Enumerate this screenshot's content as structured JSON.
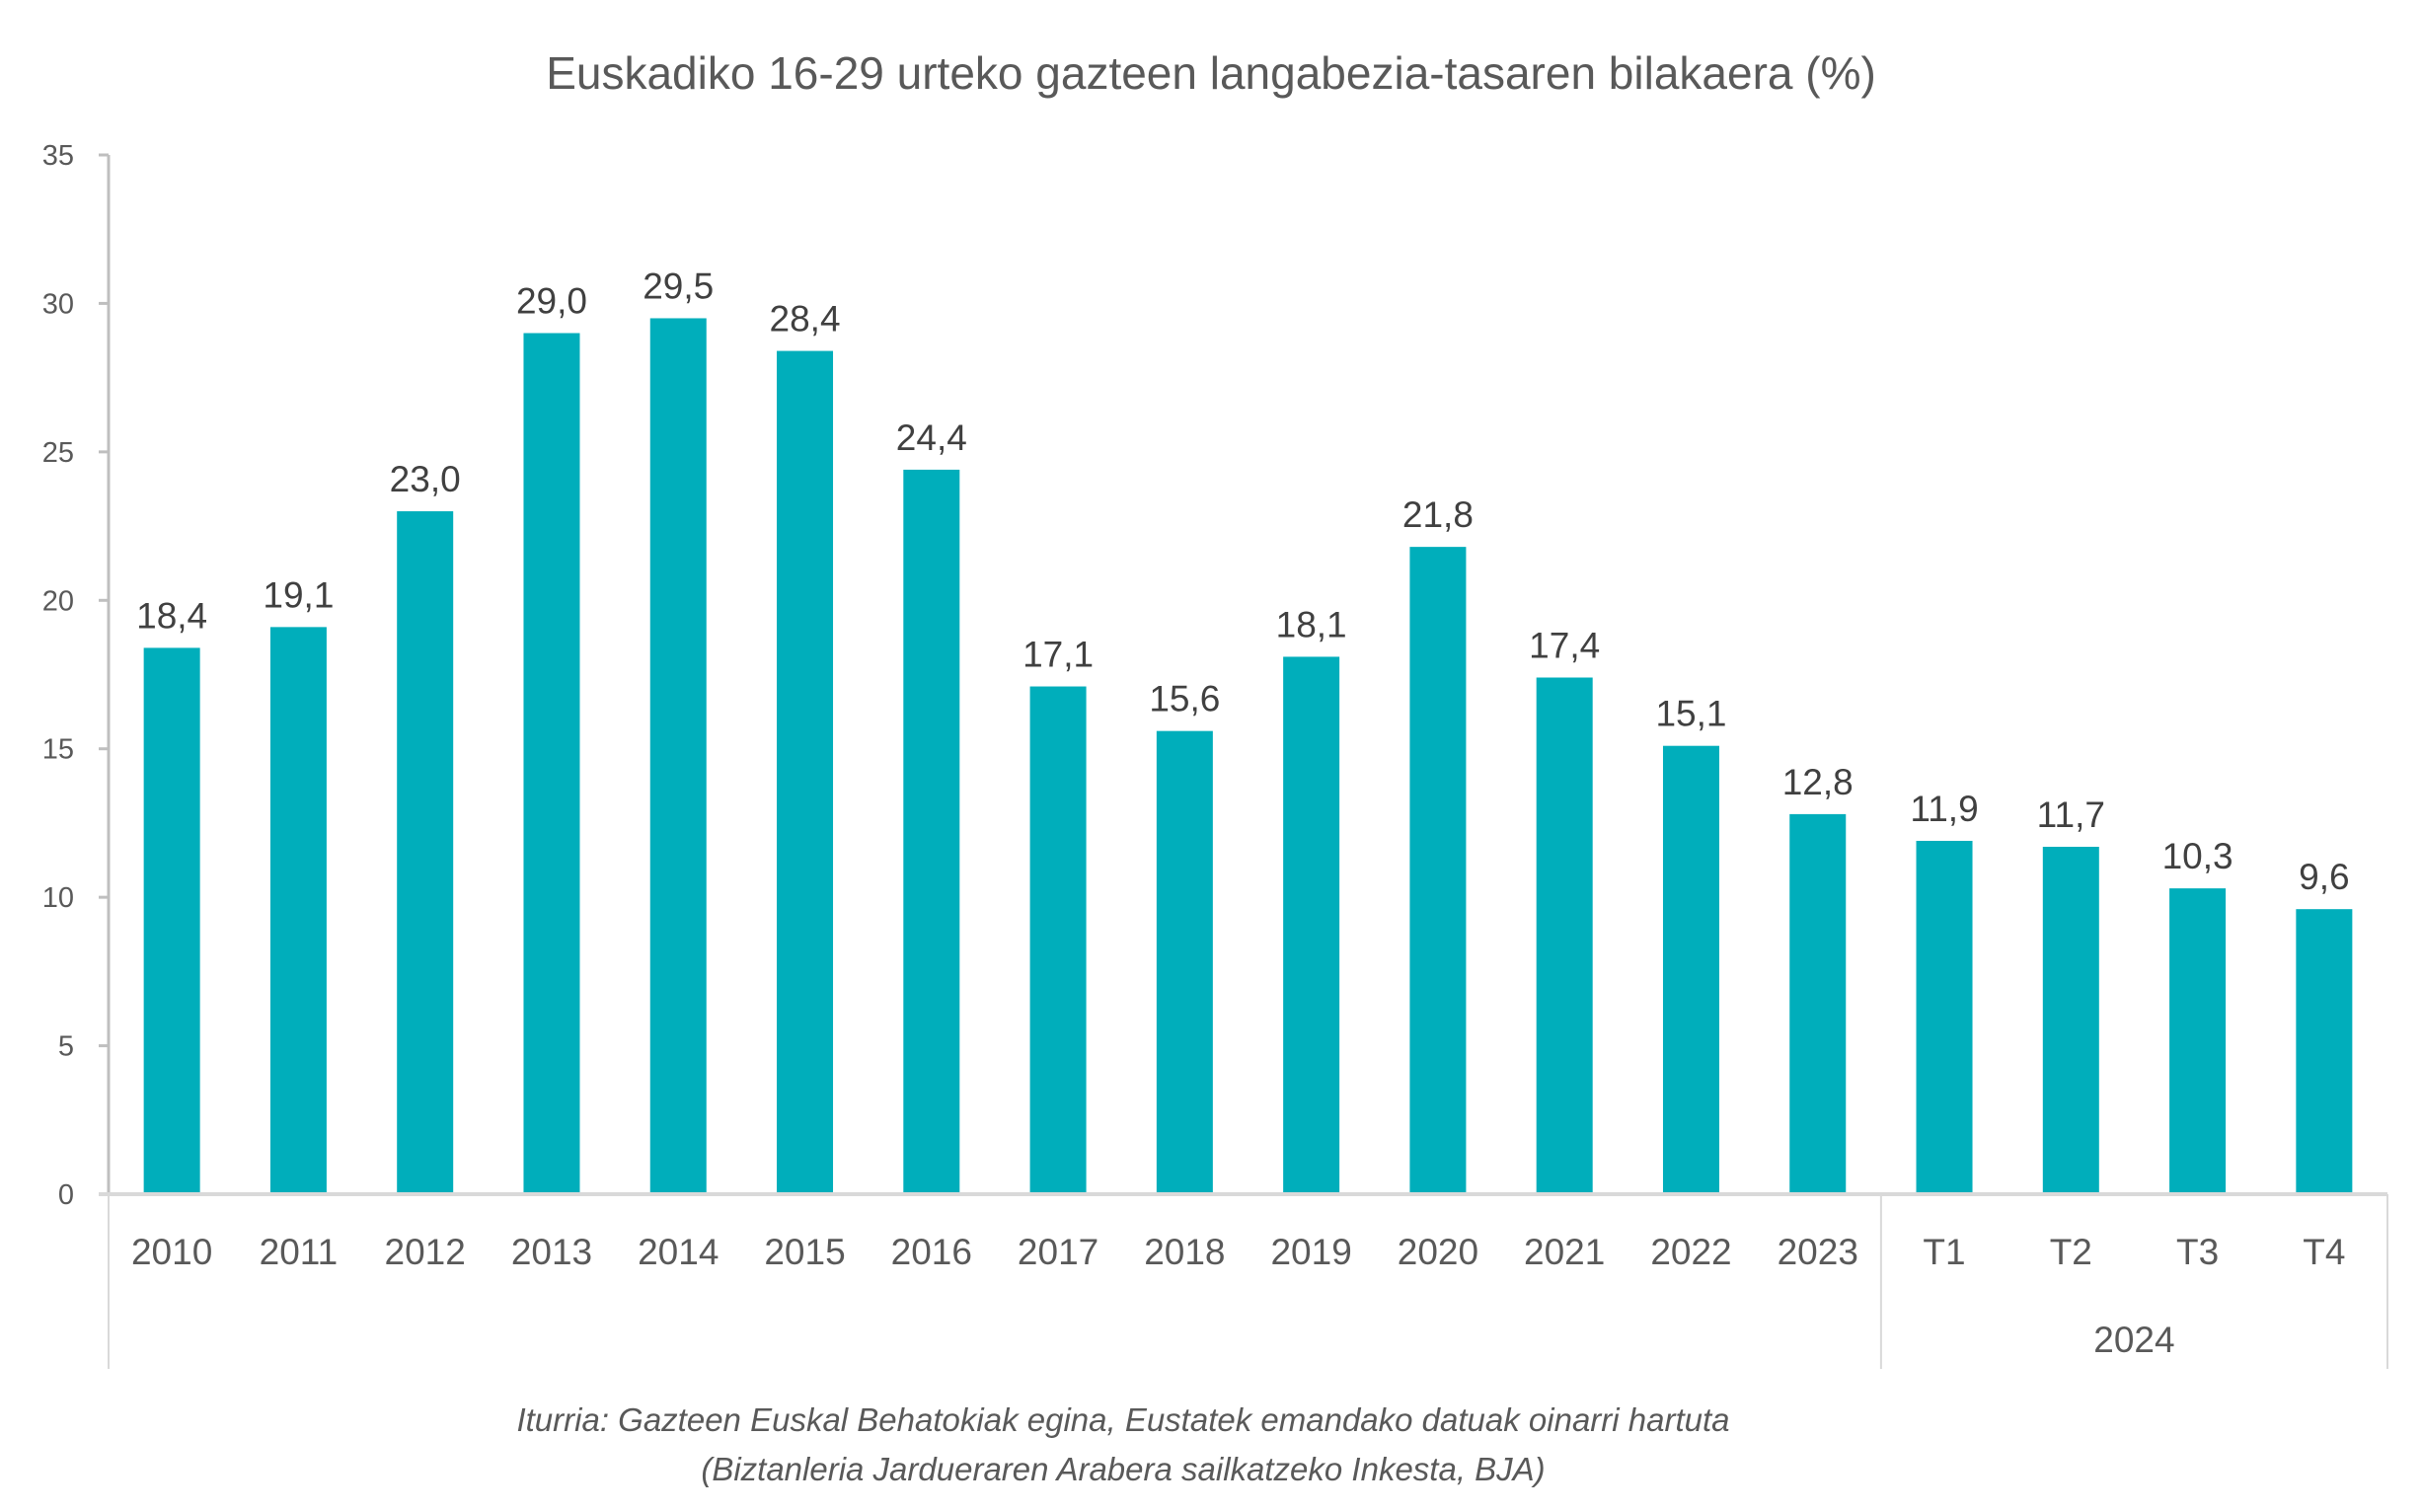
{
  "chart_data": {
    "type": "bar",
    "title": "Euskadiko 16-29 urteko gazteen langabezia-tasaren bilakaera (%)",
    "xlabel": "",
    "ylabel": "",
    "ylim": [
      0,
      35
    ],
    "yticks": [
      0,
      5,
      10,
      15,
      20,
      25,
      30,
      35
    ],
    "categories": [
      "2010",
      "2011",
      "2012",
      "2013",
      "2014",
      "2015",
      "2016",
      "2017",
      "2018",
      "2019",
      "2020",
      "2021",
      "2022",
      "2023",
      "T1",
      "T2",
      "T3",
      "T4"
    ],
    "group_labels": [
      {
        "label": "2024",
        "categories": [
          "T1",
          "T2",
          "T3",
          "T4"
        ]
      }
    ],
    "values": [
      18.4,
      19.1,
      23.0,
      29.0,
      29.5,
      28.4,
      24.4,
      17.1,
      15.6,
      18.1,
      21.8,
      17.4,
      15.1,
      12.8,
      11.9,
      11.7,
      10.3,
      9.6
    ],
    "data_labels": [
      "18,4",
      "19,1",
      "23,0",
      "29,0",
      "29,5",
      "28,4",
      "24,4",
      "17,1",
      "15,6",
      "18,1",
      "21,8",
      "17,4",
      "15,1",
      "12,8",
      "11,9",
      "11,7",
      "10,3",
      "9,6"
    ],
    "bar_color": "#00AEBB",
    "grid": false,
    "legend": "none"
  },
  "source": {
    "line1": "Iturria: Gazteen Euskal Behatokiak egina, Eustatek emandako datuak oinarri hartuta",
    "line2": "(Biztanleria Jardueraren Arabera sailkatzeko Inkesta, BJA)"
  }
}
